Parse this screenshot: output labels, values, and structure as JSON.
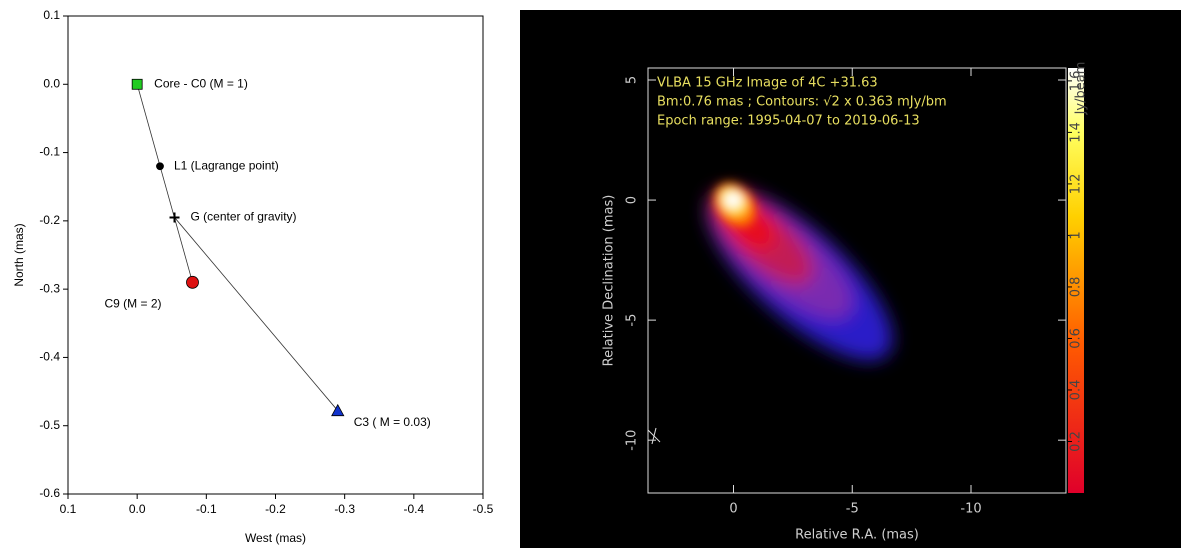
{
  "chart_data": [
    {
      "type": "scatter",
      "xlabel": "West (mas)",
      "ylabel": "North (mas)",
      "xlim": [
        0.1,
        -0.5
      ],
      "xticks": [
        0.1,
        {
          "value": 0,
          "label": "0.0"
        },
        -0.1,
        -0.2,
        -0.3,
        -0.4,
        -0.5
      ],
      "ylim": [
        -0.6,
        0.1
      ],
      "yticks": [
        0.1,
        {
          "value": 0,
          "label": "0.0"
        },
        -0.1,
        -0.2,
        -0.3,
        -0.4,
        -0.5,
        -0.6
      ],
      "series": [
        {
          "name": "Core - C0 (M = 1)",
          "color": "#22cc22",
          "marker": "square",
          "x": [
            0
          ],
          "y": [
            0
          ]
        },
        {
          "name": "L1 (Lagrange point)",
          "color": "#000000",
          "marker": "circle",
          "x": [
            -0.033
          ],
          "y": [
            -0.12
          ]
        },
        {
          "name": "G (center of gravity)",
          "color": "#000000",
          "marker": "plus",
          "x": [
            -0.054
          ],
          "y": [
            -0.195
          ]
        },
        {
          "name": "C9 (M = 2)",
          "color": "#dd1111",
          "marker": "circle",
          "x": [
            -0.08
          ],
          "y": [
            -0.29
          ]
        },
        {
          "name": "C3 ( M = 0.03)",
          "color": "#1133cc",
          "marker": "triangle",
          "x": [
            -0.29
          ],
          "y": [
            -0.478
          ]
        }
      ]
    },
    {
      "type": "image",
      "annotations": [
        "VLBA 15 GHz Image of 4C +31.63",
        "Bm:0.76 mas ; Contours: √2 x 0.363 mJy/bm",
        "Epoch range: 1995-04-07 to 2019-06-13"
      ],
      "xlabel": "Relative R.A. (mas)",
      "ylabel": "Relative Declination (mas)",
      "xlim": [
        3.6,
        -14
      ],
      "xticks": [
        0,
        -5,
        -10
      ],
      "ylim": [
        -12.2,
        5.5
      ],
      "yticks": [
        5,
        0,
        -5,
        -10
      ],
      "colorbar_label": "Jy/beam",
      "clim": [
        0,
        1.65
      ],
      "cticks": [
        0.2,
        0.4,
        0.6,
        0.8,
        1,
        1.2,
        1.4,
        1.6
      ]
    }
  ]
}
